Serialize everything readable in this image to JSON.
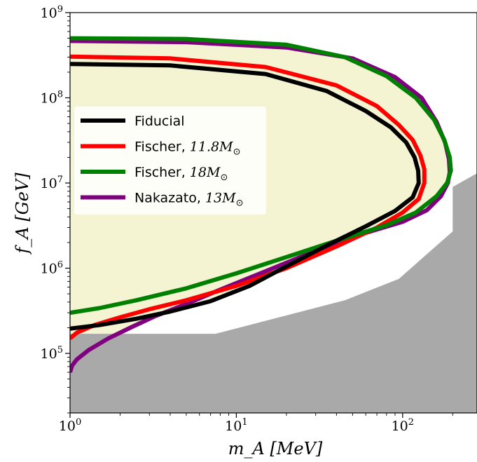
{
  "chart_data": {
    "type": "line",
    "xlabel": "m_A  [MeV]",
    "ylabel": "f_A  [GeV]",
    "x_scale": "log",
    "y_scale": "log",
    "xlim": [
      1,
      280
    ],
    "ylim": [
      20000,
      1000000000
    ],
    "grid": false,
    "legend_placement": "center-left",
    "x_ticks": [
      {
        "value": 1,
        "base": "10",
        "exp": "0"
      },
      {
        "value": 10,
        "base": "10",
        "exp": "1"
      },
      {
        "value": 100,
        "base": "10",
        "exp": "2"
      }
    ],
    "y_ticks": [
      {
        "value": 100000,
        "base": "10",
        "exp": "5"
      },
      {
        "value": 1000000,
        "base": "10",
        "exp": "6"
      },
      {
        "value": 10000000,
        "base": "10",
        "exp": "7"
      },
      {
        "value": 100000000,
        "base": "10",
        "exp": "8"
      },
      {
        "value": 1000000000,
        "base": "10",
        "exp": "9"
      }
    ],
    "fill_color": "#f4f4d2",
    "excluded_color": "#a9a9a9",
    "excluded_regions": [
      {
        "points": [
          [
            1,
            20000
          ],
          [
            1,
            170000
          ],
          [
            7.5,
            170000
          ],
          [
            45,
            420000
          ],
          [
            95,
            750000
          ],
          [
            200,
            2700000
          ],
          [
            200,
            9000000
          ],
          [
            280,
            13000000
          ],
          [
            280,
            20000
          ]
        ]
      },
      {
        "points": [
          [
            200,
            32000
          ],
          [
            200,
            300000
          ],
          [
            230,
            800000
          ],
          [
            280,
            1200000
          ],
          [
            280,
            20000
          ],
          [
            215,
            28000
          ]
        ]
      }
    ],
    "series": [
      {
        "name": "Nakazato, ",
        "math": "13M",
        "color": "#800080",
        "x": [
          1,
          1.03,
          1.1,
          1.3,
          1.7,
          2.3,
          3.2,
          5,
          8,
          15,
          30,
          60,
          100,
          140,
          170,
          187,
          192,
          190,
          180,
          160,
          130,
          90,
          50,
          20,
          5,
          1
        ],
        "y": [
          60000,
          72000,
          85000,
          110000,
          150000,
          200000,
          270000,
          380000,
          560000,
          920000,
          1600000,
          2600000,
          3500000,
          4800000,
          7000000,
          10000000,
          13500000,
          19000000,
          30000000,
          52000000,
          100000000,
          175000000,
          290000000,
          390000000,
          450000000,
          465000000
        ]
      },
      {
        "name": "Fischer, ",
        "math": "11.8M",
        "color": "#ff0000",
        "x": [
          1,
          1.1,
          1.4,
          2,
          3,
          5,
          10,
          20,
          40,
          70,
          100,
          125,
          135,
          135,
          128,
          115,
          95,
          70,
          40,
          15,
          4,
          1
        ],
        "y": [
          150000,
          175000,
          215000,
          265000,
          330000,
          420000,
          620000,
          1000000,
          1800000,
          3000000,
          4500000,
          6500000,
          10000000,
          14500000,
          21000000,
          32000000,
          48000000,
          80000000,
          140000000,
          230000000,
          290000000,
          305000000
        ]
      },
      {
        "name": "Fischer, ",
        "math": "18M",
        "color": "#008000",
        "x": [
          1,
          1.5,
          2.5,
          5,
          10,
          20,
          40,
          80,
          120,
          160,
          185,
          195,
          192,
          178,
          155,
          120,
          80,
          45,
          20,
          5,
          1
        ],
        "y": [
          300000,
          340000,
          420000,
          580000,
          870000,
          1350000,
          2100000,
          3200000,
          4500000,
          7000000,
          10000000,
          14000000,
          20000000,
          32000000,
          55000000,
          100000000,
          180000000,
          300000000,
          420000000,
          490000000,
          500000000
        ]
      },
      {
        "name": "Fiducial",
        "math": "",
        "color": "#000000",
        "x": [
          1,
          1.5,
          2.5,
          4,
          7,
          12,
          20,
          35,
          60,
          90,
          115,
          125,
          124,
          118,
          105,
          85,
          60,
          35,
          15,
          4,
          1
        ],
        "y": [
          195000,
          215000,
          255000,
          310000,
          410000,
          620000,
          1050000,
          1850000,
          3100000,
          4700000,
          6800000,
          10000000,
          14000000,
          20000000,
          30000000,
          45000000,
          70000000,
          120000000,
          190000000,
          240000000,
          250000000
        ]
      }
    ],
    "legend": [
      {
        "label": "Fiducial",
        "math_base": "",
        "math_sub": "",
        "color": "#000000"
      },
      {
        "label": "Fischer, ",
        "math_base": "11.8M",
        "math_sub": "⊙",
        "color": "#ff0000"
      },
      {
        "label": "Fischer, ",
        "math_base": "18M",
        "math_sub": "⊙",
        "color": "#008000"
      },
      {
        "label": "Nakazato, ",
        "math_base": "13M",
        "math_sub": "⊙",
        "color": "#800080"
      }
    ]
  }
}
